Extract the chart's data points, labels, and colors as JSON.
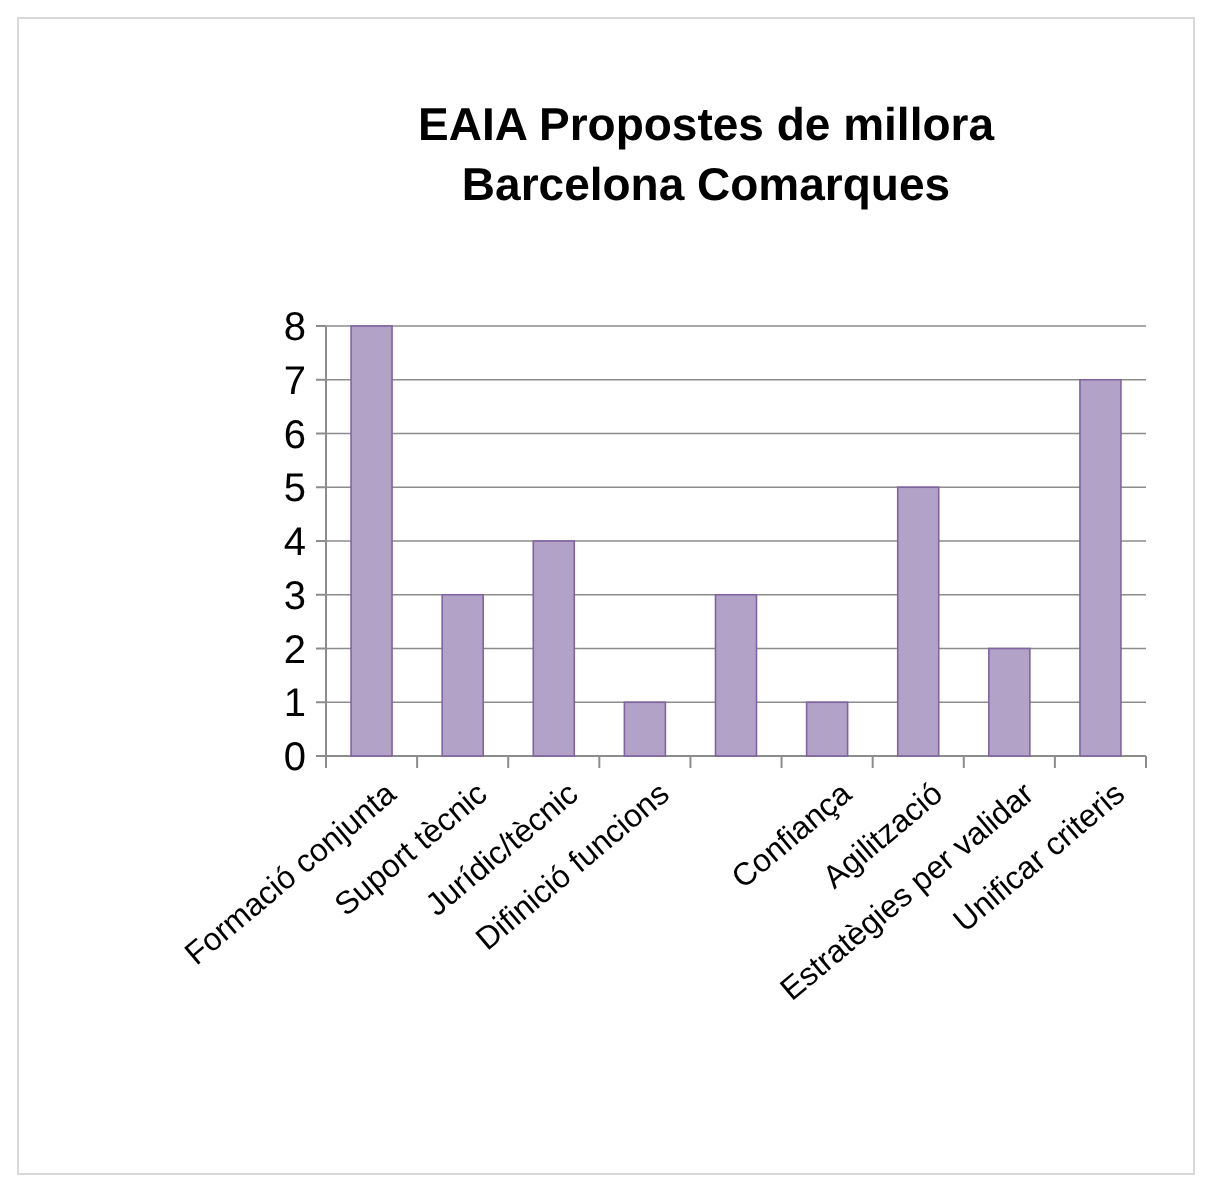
{
  "chart_data": {
    "type": "bar",
    "title": "EAIA Propostes de millora\nBarcelona Comarques",
    "categories": [
      "Formació conjunta",
      "Suport tècnic",
      "Jurídic/tècnic",
      "Difinició funcions",
      null,
      "Confiança",
      "Agilització",
      "Estratègies per validar",
      "Unificar criteris"
    ],
    "values": [
      8,
      3,
      4,
      1,
      3,
      1,
      5,
      2,
      7
    ],
    "color": "#b3a2c7",
    "ylim": [
      0,
      8
    ],
    "yticks": [
      0,
      1,
      2,
      3,
      4,
      5,
      6,
      7,
      8
    ],
    "grid": "y"
  }
}
